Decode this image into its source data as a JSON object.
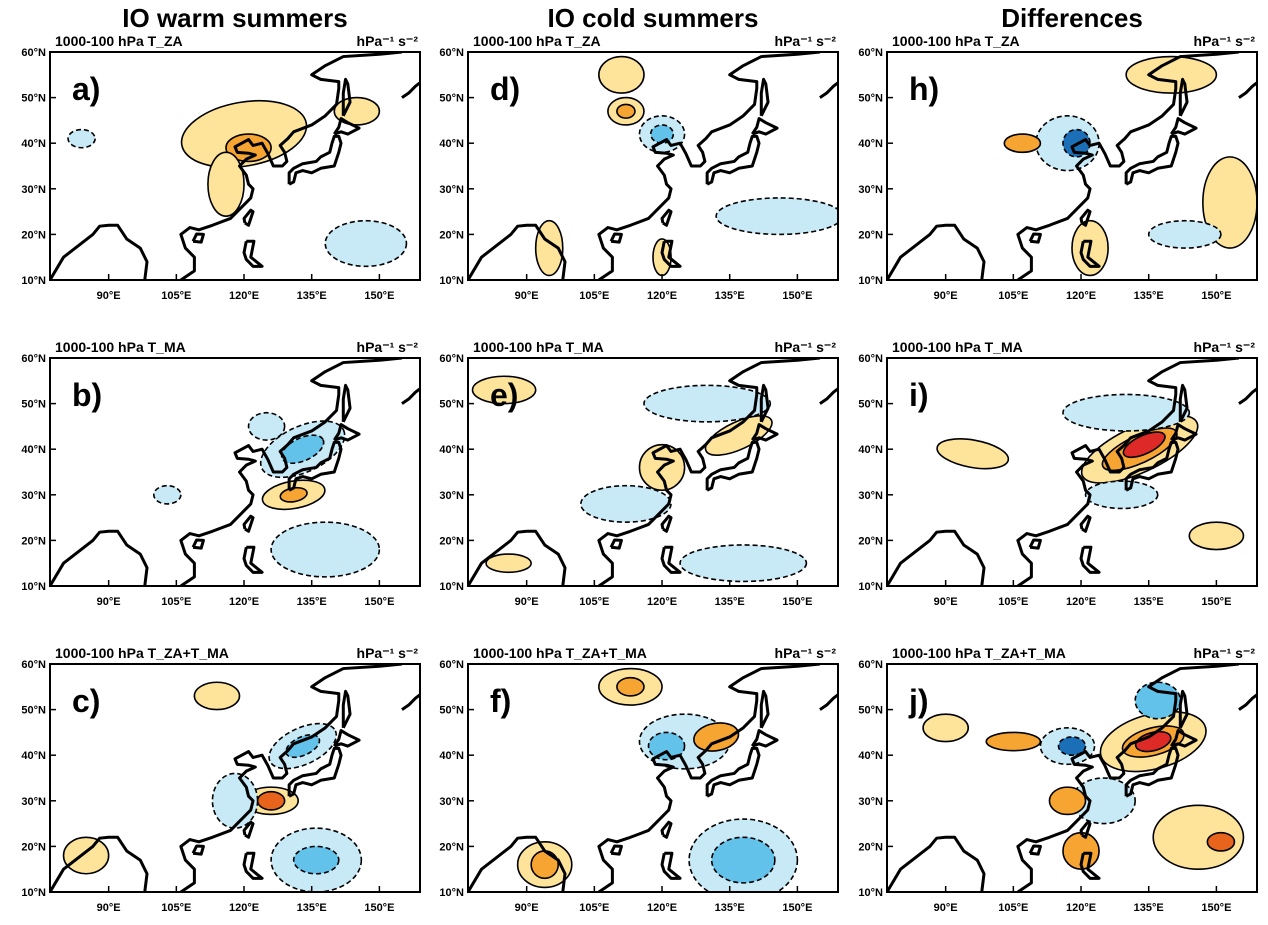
{
  "columns": [
    {
      "title": "IO warm summers",
      "panels": [
        {
          "label": "a)",
          "title": "1000-100 hPa T_ZA",
          "units": "hPa⁻¹ s⁻²"
        },
        {
          "label": "b)",
          "title": "1000-100 hPa T_MA",
          "units": "hPa⁻¹ s⁻²"
        },
        {
          "label": "c)",
          "title": "1000-100 hPa T_ZA+T_MA",
          "units": "hPa⁻¹ s⁻²"
        }
      ]
    },
    {
      "title": "IO cold summers",
      "panels": [
        {
          "label": "d)",
          "title": "1000-100 hPa T_ZA",
          "units": "hPa⁻¹ s⁻²"
        },
        {
          "label": "e)",
          "title": "1000-100 hPa T_MA",
          "units": "hPa⁻¹ s⁻²"
        },
        {
          "label": "f)",
          "title": "1000-100 hPa T_ZA+T_MA",
          "units": "hPa⁻¹ s⁻²"
        }
      ]
    },
    {
      "title": "Differences",
      "panels": [
        {
          "label": "h)",
          "title": "1000-100 hPa T_ZA",
          "units": "hPa⁻¹ s⁻²"
        },
        {
          "label": "i)",
          "title": "1000-100 hPa T_MA",
          "units": "hPa⁻¹ s⁻²"
        },
        {
          "label": "j)",
          "title": "1000-100 hPa T_ZA+T_MA",
          "units": "hPa⁻¹ s⁻²"
        }
      ]
    }
  ],
  "lat_axis": {
    "range": [
      10,
      60
    ],
    "ticks": [
      {
        "value": 10,
        "label": "10°N"
      },
      {
        "value": 20,
        "label": "20°N"
      },
      {
        "value": 30,
        "label": "30°N"
      },
      {
        "value": 40,
        "label": "40°N"
      },
      {
        "value": 50,
        "label": "50°N"
      },
      {
        "value": 60,
        "label": "60°N"
      }
    ]
  },
  "lon_axis": {
    "range": [
      77,
      159
    ],
    "ticks": [
      {
        "value": 90,
        "label": "90°E"
      },
      {
        "value": 105,
        "label": "105°E"
      },
      {
        "value": 120,
        "label": "120°E"
      },
      {
        "value": 135,
        "label": "135°E"
      },
      {
        "value": 150,
        "label": "150°E"
      }
    ]
  }
}
